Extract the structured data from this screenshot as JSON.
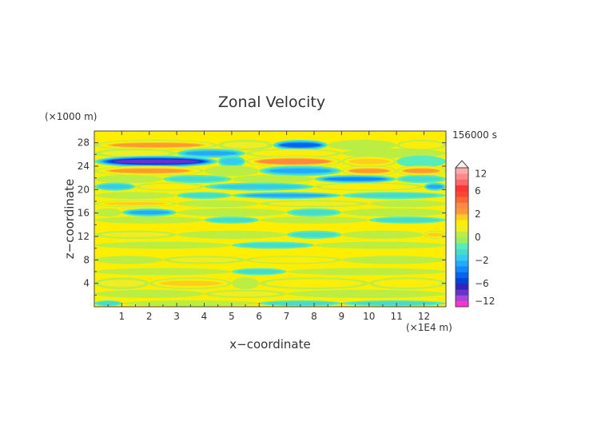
{
  "chart_data": {
    "type": "heatmap",
    "title": "Zonal Velocity",
    "xlabel": "x−coordinate",
    "ylabel": "z−coordinate",
    "x_unit": "(×1E4 m)",
    "y_unit": "(×1000 m)",
    "time_label": "156000 s",
    "xlim": [
      0,
      12.8
    ],
    "ylim": [
      0,
      30
    ],
    "x_ticks": [
      "1",
      "2",
      "3",
      "4",
      "5",
      "6",
      "7",
      "8",
      "9",
      "10",
      "11",
      "12"
    ],
    "y_ticks": [
      "4",
      "8",
      "12",
      "16",
      "20",
      "24",
      "28"
    ],
    "colorbar": {
      "tick_labels": [
        "12",
        "6",
        "2",
        "0",
        "−2",
        "−6",
        "−12"
      ],
      "tick_values": [
        12,
        6,
        2,
        0,
        -2,
        -6,
        -12
      ],
      "levels": [
        -14,
        -12,
        -10,
        -8,
        -6,
        -5,
        -4,
        -3,
        -2,
        -1.5,
        -1,
        -0.5,
        0,
        0.5,
        1,
        1.5,
        2,
        3,
        4,
        5,
        6,
        8,
        10,
        12,
        14
      ],
      "colors": [
        "#ff33cc",
        "#aa44dd",
        "#6633cc",
        "#3322bb",
        "#0044dd",
        "#0066ee",
        "#1188ff",
        "#22aaff",
        "#33ccee",
        "#44ddcc",
        "#55eebb",
        "#99ee66",
        "#bbee44",
        "#eeee22",
        "#ffee00",
        "#ffcc22",
        "#ff9933",
        "#ff8844",
        "#ff6633",
        "#ff4433",
        "#ff3333",
        "#ff6666",
        "#ff8888",
        "#ffaaaa"
      ]
    },
    "bands": [
      {
        "z": 27.6,
        "thick": 0.9,
        "segments": [
          [
            0.0,
            4.5,
            2.5
          ],
          [
            4.5,
            6.5,
            0.6
          ],
          [
            6.5,
            8.5,
            -3.5
          ],
          [
            8.5,
            11.0,
            0.3
          ],
          [
            11.0,
            12.8,
            1.2
          ]
        ]
      },
      {
        "z": 26.2,
        "thick": 0.8,
        "segments": [
          [
            0.0,
            3.0,
            1.0
          ],
          [
            3.0,
            5.5,
            -2.0
          ],
          [
            5.5,
            9.0,
            1.5
          ],
          [
            9.0,
            12.8,
            0.4
          ]
        ]
      },
      {
        "z": 24.8,
        "thick": 1.0,
        "segments": [
          [
            0.0,
            4.5,
            -6.5
          ],
          [
            4.5,
            5.5,
            -1.5
          ],
          [
            5.5,
            9.0,
            4.0
          ],
          [
            9.0,
            11.0,
            2.0
          ],
          [
            11.0,
            12.8,
            -0.5
          ]
        ]
      },
      {
        "z": 23.2,
        "thick": 0.9,
        "segments": [
          [
            0.0,
            4.0,
            2.5
          ],
          [
            4.0,
            6.0,
            0.3
          ],
          [
            6.0,
            9.0,
            -1.8
          ],
          [
            9.0,
            11.0,
            2.5
          ],
          [
            11.0,
            12.8,
            3.0
          ]
        ]
      },
      {
        "z": 21.8,
        "thick": 0.7,
        "segments": [
          [
            0.0,
            2.5,
            0.3
          ],
          [
            2.5,
            5.0,
            -1.0
          ],
          [
            5.0,
            8.0,
            0.5
          ],
          [
            8.0,
            11.0,
            -2.5
          ],
          [
            11.0,
            12.8,
            -1.0
          ]
        ]
      },
      {
        "z": 20.5,
        "thick": 0.7,
        "segments": [
          [
            0.0,
            1.5,
            -1.5
          ],
          [
            1.5,
            4.0,
            1.5
          ],
          [
            4.0,
            8.0,
            -1.2
          ],
          [
            8.0,
            12.0,
            1.2
          ],
          [
            12.0,
            12.8,
            -2.0
          ]
        ]
      },
      {
        "z": 19.0,
        "thick": 0.6,
        "segments": [
          [
            0.0,
            3.0,
            0.4
          ],
          [
            3.0,
            5.0,
            -1.0
          ],
          [
            5.0,
            9.0,
            -2.0
          ],
          [
            9.0,
            12.8,
            -0.8
          ]
        ]
      },
      {
        "z": 17.6,
        "thick": 0.6,
        "segments": [
          [
            0.0,
            3.0,
            1.6
          ],
          [
            3.0,
            6.0,
            0.5
          ],
          [
            6.0,
            10.0,
            1.0
          ],
          [
            10.0,
            12.8,
            0.4
          ]
        ]
      },
      {
        "z": 16.1,
        "thick": 0.7,
        "segments": [
          [
            0.0,
            1.0,
            0.5
          ],
          [
            1.0,
            3.0,
            -2.0
          ],
          [
            3.0,
            7.0,
            0.3
          ],
          [
            7.0,
            9.0,
            -0.8
          ],
          [
            9.0,
            12.8,
            0.5
          ]
        ]
      },
      {
        "z": 14.8,
        "thick": 0.6,
        "segments": [
          [
            0.0,
            4.0,
            0.5
          ],
          [
            4.0,
            6.0,
            -1.0
          ],
          [
            6.0,
            10.0,
            0.4
          ],
          [
            10.0,
            12.8,
            -1.0
          ]
        ]
      },
      {
        "z": 12.3,
        "thick": 0.7,
        "segments": [
          [
            0.0,
            3.0,
            1.0
          ],
          [
            3.0,
            7.0,
            0.5
          ],
          [
            7.0,
            9.0,
            -1.0
          ],
          [
            9.0,
            12.0,
            0.5
          ],
          [
            12.0,
            12.8,
            2.0
          ]
        ]
      },
      {
        "z": 10.5,
        "thick": 0.6,
        "segments": [
          [
            0.0,
            5.0,
            0.4
          ],
          [
            5.0,
            8.0,
            -0.8
          ],
          [
            8.0,
            12.8,
            0.5
          ]
        ]
      },
      {
        "z": 8.0,
        "thick": 0.7,
        "segments": [
          [
            0.0,
            2.5,
            0.5
          ],
          [
            2.5,
            5.5,
            1.0
          ],
          [
            5.5,
            9.0,
            1.5
          ],
          [
            9.0,
            12.8,
            0.5
          ]
        ]
      },
      {
        "z": 6.0,
        "thick": 0.6,
        "segments": [
          [
            0.0,
            5.0,
            0.3
          ],
          [
            5.0,
            7.0,
            -0.6
          ],
          [
            7.0,
            12.8,
            0.4
          ]
        ]
      },
      {
        "z": 4.0,
        "thick": 1.0,
        "segments": [
          [
            0.0,
            2.0,
            1.0
          ],
          [
            2.0,
            5.0,
            2.0
          ],
          [
            5.0,
            6.0,
            0.5
          ],
          [
            6.0,
            10.0,
            1.5
          ],
          [
            10.0,
            12.8,
            1.2
          ]
        ]
      },
      {
        "z": 2.2,
        "thick": 0.7,
        "segments": [
          [
            0.0,
            4.0,
            0.3
          ],
          [
            4.0,
            7.0,
            0.8
          ],
          [
            7.0,
            12.8,
            0.4
          ]
        ]
      },
      {
        "z": 0.6,
        "thick": 0.5,
        "segments": [
          [
            0.0,
            1.0,
            -1.0
          ],
          [
            1.0,
            6.0,
            0.4
          ],
          [
            6.0,
            9.0,
            -0.8
          ],
          [
            9.0,
            12.8,
            -0.6
          ]
        ]
      }
    ]
  }
}
